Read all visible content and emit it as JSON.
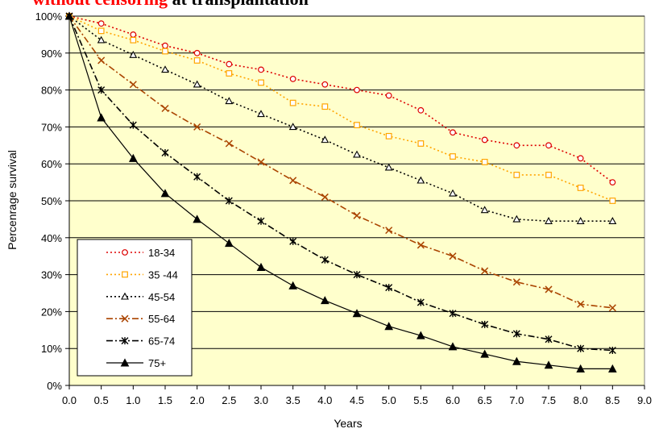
{
  "title_fragment": {
    "highlight": "without censoring",
    "rest": " at transplantation"
  },
  "chart_data": {
    "type": "line",
    "xlabel": "Years",
    "ylabel": "Percenrage survival",
    "xlim": [
      0,
      9
    ],
    "ylim": [
      0,
      100
    ],
    "x_ticks": [
      "0.0",
      "0.5",
      "1.0",
      "1.5",
      "2.0",
      "2.5",
      "3.0",
      "3.5",
      "4.0",
      "4.5",
      "5.0",
      "5.5",
      "6.0",
      "6.5",
      "7.0",
      "7.5",
      "8.0",
      "8.5",
      "9.0"
    ],
    "y_ticks": [
      "0%",
      "10%",
      "20%",
      "30%",
      "40%",
      "50%",
      "60%",
      "70%",
      "80%",
      "90%",
      "100%"
    ],
    "grid": "horizontal",
    "plot_background": "#ffffcc",
    "legend_placement": "bottom-left",
    "x": [
      0,
      0.5,
      1,
      1.5,
      2,
      2.5,
      3,
      3.5,
      4,
      4.5,
      5,
      5.5,
      6,
      6.5,
      7,
      7.5,
      8,
      8.5
    ],
    "series": [
      {
        "name": "18-34",
        "color": "#dd0000",
        "marker": "circle",
        "dash": "dot",
        "values": [
          100,
          98,
          95,
          92,
          90,
          87,
          85.5,
          83,
          81.5,
          80,
          78.5,
          74.5,
          68.5,
          66.5,
          65,
          65,
          61.5,
          55
        ]
      },
      {
        "name": "35 -44",
        "color": "#ffa500",
        "marker": "square",
        "dash": "dot",
        "values": [
          100,
          96,
          93.5,
          90.5,
          88,
          84.5,
          82,
          76.5,
          75.5,
          70.5,
          67.5,
          65.5,
          62,
          60.5,
          57,
          57,
          53.5,
          50
        ]
      },
      {
        "name": "45-54",
        "color": "#000000",
        "marker": "triangle-open",
        "dash": "dot",
        "values": [
          100,
          93.5,
          89.5,
          85.5,
          81.5,
          77,
          73.5,
          70,
          66.5,
          62.5,
          59,
          55.5,
          52,
          47.5,
          45,
          44.5,
          44.5,
          44.5
        ]
      },
      {
        "name": "55-64",
        "color": "#aa4400",
        "marker": "x",
        "dash": "dashdot",
        "values": [
          100,
          88,
          81.5,
          75,
          70,
          65.5,
          60.5,
          55.5,
          51,
          46,
          42,
          38,
          35,
          31,
          28,
          26,
          22,
          21
        ]
      },
      {
        "name": "65-74",
        "color": "#000000",
        "marker": "asterisk",
        "dash": "dashdot",
        "values": [
          100,
          80,
          70.5,
          63,
          56.5,
          50,
          44.5,
          39,
          34,
          30,
          26.5,
          22.5,
          19.5,
          16.5,
          14,
          12.5,
          10,
          9.5
        ]
      },
      {
        "name": "75+",
        "color": "#000000",
        "marker": "triangle-filled",
        "dash": "solid",
        "values": [
          100,
          72.5,
          61.5,
          52,
          45,
          38.5,
          32,
          27,
          23,
          19.5,
          16,
          13.5,
          10.5,
          8.5,
          6.5,
          5.5,
          4.5,
          4.5
        ]
      }
    ]
  }
}
